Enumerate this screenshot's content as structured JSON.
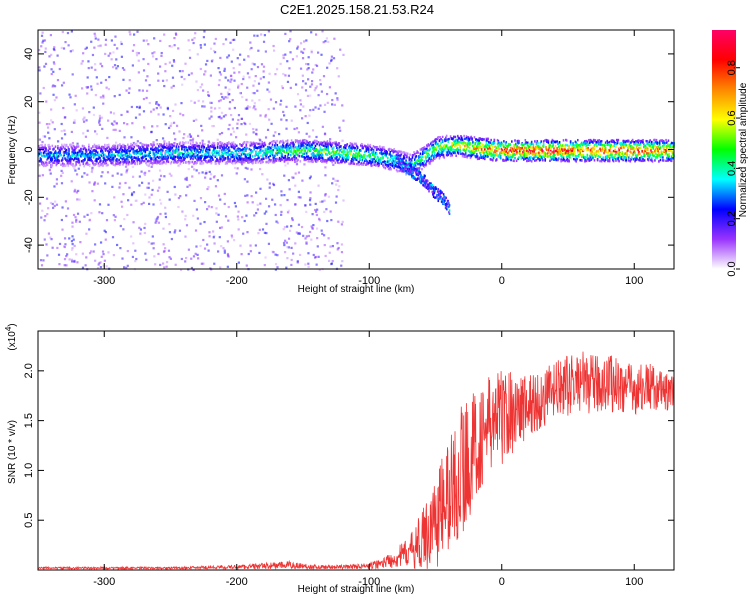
{
  "title": "C2E1.2025.158.21.53.R24",
  "chart_data": [
    {
      "type": "heatmap",
      "xlabel": "Height of straight line (km)",
      "ylabel": "Frequency (Hz)",
      "xlim": [
        -350,
        130
      ],
      "ylim": [
        -50,
        50
      ],
      "x_ticks": [
        -300,
        -200,
        -100,
        0,
        100
      ],
      "y_ticks": [
        -40,
        -20,
        0,
        20,
        40
      ],
      "colorbar": {
        "label": "Normalized spectral amplitude",
        "range": [
          0.0,
          0.95
        ],
        "ticks": [
          "0.0",
          "0.2",
          "0.4",
          "0.6",
          "0.8"
        ],
        "colormap": "rainbow",
        "colors": [
          "#ffffff",
          "#9933ff",
          "#0000ff",
          "#00ffff",
          "#00ff00",
          "#ffff00",
          "#ff8800",
          "#ff0000",
          "#ff0066"
        ]
      },
      "ridge": {
        "x": [
          -350,
          -300,
          -250,
          -200,
          -150,
          -120,
          -100,
          -80,
          -70,
          -60,
          -50,
          -40,
          -30,
          -20,
          0,
          50,
          100,
          130
        ],
        "frequency": [
          -2,
          -2,
          -1,
          -1,
          0,
          -1,
          -2,
          -4,
          -6,
          -3,
          1,
          2,
          2,
          1,
          0,
          0,
          0,
          0
        ],
        "amplitude": [
          0.35,
          0.35,
          0.4,
          0.4,
          0.5,
          0.55,
          0.5,
          0.45,
          0.4,
          0.5,
          0.55,
          0.6,
          0.65,
          0.75,
          0.85,
          0.9,
          0.85,
          0.8
        ]
      },
      "noise_region": {
        "x_range": [
          -350,
          -120
        ],
        "amplitude": 0.15
      },
      "branch": {
        "x": [
          -80,
          -70,
          -60,
          -50,
          -45,
          -40
        ],
        "frequency": [
          -4,
          -8,
          -12,
          -18,
          -20,
          -24
        ]
      },
      "grid": false
    },
    {
      "type": "line",
      "xlabel": "Height of straight line (km)",
      "ylabel": "SNR (10 * v/v)",
      "exponent_label": "(x10",
      "exponent": "4",
      "exponent_close": ")",
      "xlim": [
        -350,
        130
      ],
      "ylim": [
        0,
        2.4
      ],
      "x_ticks": [
        -300,
        -200,
        -100,
        0,
        100
      ],
      "y_ticks": [
        "0.5",
        "1.0",
        "1.5",
        "2.0"
      ],
      "color": "#ee3333",
      "series": [
        {
          "x": [
            -350,
            -300,
            -250,
            -200,
            -160,
            -140,
            -120,
            -100,
            -90,
            -80,
            -70,
            -60,
            -50,
            -40,
            -30,
            -20,
            -10,
            0,
            10,
            20,
            30,
            40,
            50,
            60,
            70,
            80,
            90,
            100,
            110,
            120,
            130
          ],
          "values": [
            0.02,
            0.02,
            0.02,
            0.03,
            0.05,
            0.03,
            0.03,
            0.04,
            0.07,
            0.12,
            0.18,
            0.3,
            0.5,
            0.75,
            1.0,
            1.25,
            1.45,
            1.55,
            1.6,
            1.65,
            1.7,
            1.8,
            1.85,
            1.9,
            1.85,
            1.9,
            1.85,
            1.8,
            1.85,
            1.8,
            1.75
          ],
          "spread": [
            0.01,
            0.01,
            0.01,
            0.02,
            0.04,
            0.02,
            0.02,
            0.03,
            0.05,
            0.1,
            0.15,
            0.3,
            0.5,
            0.6,
            0.7,
            0.55,
            0.5,
            0.5,
            0.4,
            0.35,
            0.3,
            0.3,
            0.3,
            0.3,
            0.3,
            0.3,
            0.3,
            0.25,
            0.25,
            0.2,
            0.2
          ]
        }
      ],
      "grid": false
    }
  ]
}
